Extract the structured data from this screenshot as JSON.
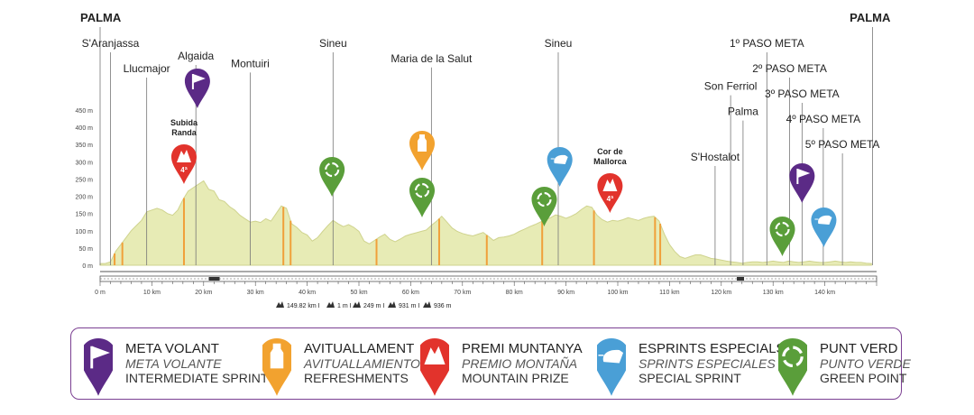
{
  "chart_data": {
    "type": "area",
    "yticks": [
      "450 m",
      "400 m",
      "350 m",
      "300 m",
      "250 m",
      "200 m",
      "150 m",
      "100 m",
      "50 m",
      "0 m"
    ],
    "ytick_values": [
      450,
      400,
      350,
      300,
      250,
      200,
      150,
      100,
      50,
      0
    ],
    "xticks": [
      "0 m",
      "10 km",
      "20 km",
      "30 km",
      "40 km",
      "50 km",
      "60 km",
      "70 km",
      "80 km",
      "90 km",
      "100 km",
      "110 km",
      "120 km",
      "130 km",
      "140 km"
    ],
    "xtick_values": [
      0,
      10,
      20,
      30,
      40,
      50,
      60,
      70,
      80,
      90,
      100,
      110,
      120,
      130,
      140
    ],
    "xlim": [
      0,
      150
    ],
    "ylim": [
      0,
      480
    ],
    "profile_color": "#e7ebb5",
    "profile_line_color": "#cfd38e",
    "profile": [
      [
        0,
        5
      ],
      [
        1,
        5
      ],
      [
        2,
        10
      ],
      [
        3,
        40
      ],
      [
        4,
        60
      ],
      [
        5,
        80
      ],
      [
        6,
        100
      ],
      [
        7,
        115
      ],
      [
        8,
        130
      ],
      [
        9,
        155
      ],
      [
        10,
        160
      ],
      [
        11,
        165
      ],
      [
        12,
        160
      ],
      [
        13,
        150
      ],
      [
        14,
        145
      ],
      [
        15,
        160
      ],
      [
        16,
        190
      ],
      [
        17,
        215
      ],
      [
        18,
        225
      ],
      [
        19,
        235
      ],
      [
        20,
        245
      ],
      [
        21,
        220
      ],
      [
        22,
        215
      ],
      [
        23,
        190
      ],
      [
        24,
        185
      ],
      [
        25,
        170
      ],
      [
        26,
        160
      ],
      [
        27,
        145
      ],
      [
        28,
        135
      ],
      [
        29,
        125
      ],
      [
        30,
        128
      ],
      [
        31,
        124
      ],
      [
        32,
        135
      ],
      [
        33,
        128
      ],
      [
        34,
        150
      ],
      [
        35,
        172
      ],
      [
        36,
        165
      ],
      [
        37,
        120
      ],
      [
        38,
        110
      ],
      [
        39,
        95
      ],
      [
        40,
        88
      ],
      [
        41,
        70
      ],
      [
        42,
        80
      ],
      [
        43,
        98
      ],
      [
        44,
        115
      ],
      [
        45,
        130
      ],
      [
        46,
        120
      ],
      [
        47,
        112
      ],
      [
        48,
        118
      ],
      [
        49,
        110
      ],
      [
        50,
        98
      ],
      [
        51,
        70
      ],
      [
        52,
        62
      ],
      [
        53,
        72
      ],
      [
        54,
        82
      ],
      [
        55,
        90
      ],
      [
        56,
        75
      ],
      [
        57,
        68
      ],
      [
        58,
        76
      ],
      [
        59,
        85
      ],
      [
        60,
        90
      ],
      [
        61,
        94
      ],
      [
        62,
        98
      ],
      [
        63,
        102
      ],
      [
        64,
        116
      ],
      [
        65,
        128
      ],
      [
        66,
        142
      ],
      [
        67,
        125
      ],
      [
        68,
        108
      ],
      [
        69,
        98
      ],
      [
        70,
        92
      ],
      [
        71,
        88
      ],
      [
        72,
        85
      ],
      [
        73,
        90
      ],
      [
        74,
        95
      ],
      [
        75,
        84
      ],
      [
        76,
        72
      ],
      [
        77,
        80
      ],
      [
        78,
        82
      ],
      [
        79,
        85
      ],
      [
        80,
        90
      ],
      [
        81,
        98
      ],
      [
        82,
        105
      ],
      [
        83,
        112
      ],
      [
        84,
        118
      ],
      [
        85,
        125
      ],
      [
        86,
        132
      ],
      [
        87,
        138
      ],
      [
        88,
        146
      ],
      [
        89,
        142
      ],
      [
        90,
        136
      ],
      [
        91,
        142
      ],
      [
        92,
        150
      ],
      [
        93,
        162
      ],
      [
        94,
        172
      ],
      [
        95,
        168
      ],
      [
        96,
        145
      ],
      [
        97,
        132
      ],
      [
        98,
        125
      ],
      [
        99,
        130
      ],
      [
        100,
        128
      ],
      [
        101,
        132
      ],
      [
        102,
        138
      ],
      [
        103,
        134
      ],
      [
        104,
        130
      ],
      [
        105,
        136
      ],
      [
        106,
        140
      ],
      [
        107,
        142
      ],
      [
        108,
        128
      ],
      [
        109,
        90
      ],
      [
        110,
        60
      ],
      [
        111,
        40
      ],
      [
        112,
        25
      ],
      [
        113,
        20
      ],
      [
        114,
        25
      ],
      [
        115,
        30
      ],
      [
        116,
        30
      ],
      [
        117,
        25
      ],
      [
        118,
        20
      ],
      [
        119,
        18
      ],
      [
        120,
        15
      ],
      [
        121,
        12
      ],
      [
        122,
        10
      ],
      [
        123,
        8
      ],
      [
        124,
        6
      ],
      [
        125,
        8
      ],
      [
        126,
        10
      ],
      [
        127,
        10
      ],
      [
        128,
        8
      ],
      [
        129,
        10
      ],
      [
        130,
        12
      ],
      [
        131,
        10
      ],
      [
        132,
        8
      ],
      [
        133,
        12
      ],
      [
        134,
        10
      ],
      [
        135,
        8
      ],
      [
        136,
        10
      ],
      [
        137,
        12
      ],
      [
        138,
        10
      ],
      [
        139,
        8
      ],
      [
        140,
        8
      ],
      [
        141,
        10
      ],
      [
        142,
        12
      ],
      [
        143,
        10
      ],
      [
        144,
        8
      ],
      [
        145,
        10
      ],
      [
        146,
        8
      ],
      [
        147,
        8
      ],
      [
        148,
        6
      ],
      [
        149,
        5
      ]
    ],
    "orange_markers_km": [
      2.8,
      4.3,
      16.2,
      35.4,
      36.8,
      53.4,
      65.5,
      74.7,
      85.4,
      95.4,
      107.2,
      108.2
    ],
    "places": [
      {
        "label": "PALMA",
        "km": 0,
        "row": 0,
        "bold": true
      },
      {
        "label": "S'Aranjassa",
        "km": 2,
        "row": 1
      },
      {
        "label": "Llucmajor",
        "km": 9,
        "row": 2
      },
      {
        "label": "Algaida",
        "km": 18.5,
        "row": 1.5
      },
      {
        "label": "Montuiri",
        "km": 29,
        "row": 1.8
      },
      {
        "label": "Sineu",
        "km": 45,
        "row": 1
      },
      {
        "label": "Maria de la Salut",
        "km": 64,
        "row": 1.6
      },
      {
        "label": "Sineu",
        "km": 88.5,
        "row": 1
      },
      {
        "label": "1º PASO META",
        "km": 128.8,
        "row": 1
      },
      {
        "label": "2º PASO META",
        "km": 133.2,
        "row": 2
      },
      {
        "label": "3º PASO META",
        "km": 135.6,
        "row": 3
      },
      {
        "label": "4º PASO META",
        "km": 139.7,
        "row": 4
      },
      {
        "label": "5º PASO META",
        "km": 143.4,
        "row": 5
      },
      {
        "label": "Son Ferriol",
        "km": 121.8,
        "row": 2.7
      },
      {
        "label": "Palma",
        "km": 124.2,
        "row": 3.7
      },
      {
        "label": "S'Hostalot",
        "km": 118.8,
        "row": 5.5
      },
      {
        "label": "PALMA",
        "km": 149.2,
        "row": 0,
        "bold": true
      }
    ],
    "climbs": [
      {
        "label1": "Subida",
        "label2": "Randa",
        "category": "4ª",
        "km": 16.2
      },
      {
        "label1": "Cor de",
        "label2": "Mallorca",
        "category": "4ª",
        "km": 98.5
      }
    ],
    "pins": [
      {
        "type": "meta_volante",
        "km": 18.8,
        "y_top": 76
      },
      {
        "type": "punt_verd",
        "km": 44.8,
        "y_top": 174
      },
      {
        "type": "avituallament",
        "km": 62.2,
        "y_top": 145
      },
      {
        "type": "punt_verd",
        "km": 62.2,
        "y_top": 197
      },
      {
        "type": "esprint",
        "km": 88.8,
        "y_top": 163
      },
      {
        "type": "punt_verd",
        "km": 85.8,
        "y_top": 207
      },
      {
        "type": "premi",
        "km": 16.2,
        "y_top": 160
      },
      {
        "type": "premi",
        "km": 98.5,
        "y_top": 192
      },
      {
        "type": "meta_volante",
        "km": 135.6,
        "y_top": 181
      },
      {
        "type": "punt_verd",
        "km": 131.8,
        "y_top": 240
      },
      {
        "type": "esprint",
        "km": 139.8,
        "y_top": 230
      }
    ],
    "summary_items": [
      "149.82 km I",
      "1 m I",
      "249 m I",
      "931 m I",
      "936 m"
    ]
  },
  "legend": {
    "items": [
      {
        "key": "meta_volante",
        "color": "#5b2a86",
        "main": "META VOLANT",
        "es": "META VOLANTE",
        "en": "INTERMEDIATE SPRINT"
      },
      {
        "key": "avituallament",
        "color": "#f2a22f",
        "main": "AVITUALLAMENT",
        "es": "AVITUALLAMIENTO",
        "en": "REFRESHMENTS"
      },
      {
        "key": "premi",
        "color": "#e2332c",
        "main": "PREMI MUNTANYA",
        "es": "PREMIO MONTAÑA",
        "en": "MOUNTAIN PRIZE"
      },
      {
        "key": "esprint",
        "color": "#4a9fd6",
        "main": "ESPRINTS ESPECIALS",
        "es": "SPRINTS ESPECIALES",
        "en": "SPECIAL SPRINT"
      },
      {
        "key": "punt_verd",
        "color": "#5a9e3a",
        "main": "PUNT VERD",
        "es": "PUNTO VERDE",
        "en": "GREEN POINT"
      }
    ],
    "border_color": "#7b3f92"
  }
}
